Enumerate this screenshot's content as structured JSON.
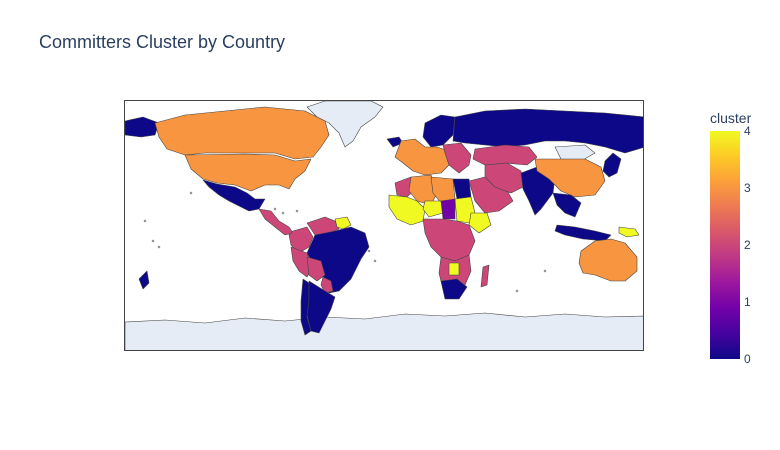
{
  "title": "Committers Cluster by Country",
  "colorbar": {
    "title": "cluster",
    "ticks": [
      "0",
      "1",
      "2",
      "3",
      "4"
    ],
    "range": [
      0,
      4
    ]
  },
  "colors": {
    "scale": [
      "#0d0887",
      "#46039f",
      "#7201a8",
      "#9c179e",
      "#bd3786",
      "#d8576b",
      "#ed7953",
      "#fb9f3a",
      "#fdca26",
      "#f0f921"
    ],
    "cluster_0": "#0d0887",
    "cluster_1": "#7201a8",
    "cluster_2": "#cc4778",
    "cluster_3": "#f89540",
    "cluster_4": "#f0f921",
    "no_data_land": "#e5ecf6",
    "border": "#444444",
    "ocean": "#ffffff"
  },
  "regions": [
    {
      "name": "Alaska/Siberia strip",
      "cluster": 0
    },
    {
      "name": "Canada",
      "cluster": 3
    },
    {
      "name": "United States",
      "cluster": 3
    },
    {
      "name": "Mexico",
      "cluster": 0
    },
    {
      "name": "Central America",
      "cluster": 2
    },
    {
      "name": "Colombia",
      "cluster": 2
    },
    {
      "name": "Venezuela",
      "cluster": 2
    },
    {
      "name": "Guyana",
      "cluster": 4
    },
    {
      "name": "Brazil",
      "cluster": 0
    },
    {
      "name": "Peru",
      "cluster": 2
    },
    {
      "name": "Bolivia",
      "cluster": 2
    },
    {
      "name": "Paraguay",
      "cluster": 2
    },
    {
      "name": "Chile",
      "cluster": 0
    },
    {
      "name": "Argentina",
      "cluster": 0
    },
    {
      "name": "Greenland",
      "cluster": null
    },
    {
      "name": "Iceland",
      "cluster": 0
    },
    {
      "name": "Western Europe",
      "cluster": 3
    },
    {
      "name": "Scandinavia",
      "cluster": 0
    },
    {
      "name": "Russia",
      "cluster": 0
    },
    {
      "name": "Eastern Europe",
      "cluster": 2
    },
    {
      "name": "Morocco",
      "cluster": 2
    },
    {
      "name": "Algeria",
      "cluster": 3
    },
    {
      "name": "Libya",
      "cluster": 3
    },
    {
      "name": "Egypt",
      "cluster": 0
    },
    {
      "name": "West Africa",
      "cluster": 4
    },
    {
      "name": "Niger",
      "cluster": 4
    },
    {
      "name": "Chad",
      "cluster": 1
    },
    {
      "name": "Sudan",
      "cluster": 4
    },
    {
      "name": "Ethiopia",
      "cluster": 4
    },
    {
      "name": "Central Africa",
      "cluster": 2
    },
    {
      "name": "Southern Africa",
      "cluster": 2
    },
    {
      "name": "Botswana",
      "cluster": 4
    },
    {
      "name": "South Africa",
      "cluster": 0
    },
    {
      "name": "Madagascar",
      "cluster": 2
    },
    {
      "name": "Arabian Peninsula",
      "cluster": 2
    },
    {
      "name": "Iran",
      "cluster": 2
    },
    {
      "name": "Central Asia",
      "cluster": 2
    },
    {
      "name": "Mongolia",
      "cluster": null
    },
    {
      "name": "China",
      "cluster": 3
    },
    {
      "name": "India",
      "cluster": 0
    },
    {
      "name": "Southeast Asia",
      "cluster": 0
    },
    {
      "name": "Japan/Korea",
      "cluster": 0
    },
    {
      "name": "Indonesia",
      "cluster": 0
    },
    {
      "name": "Papua New Guinea",
      "cluster": 4
    },
    {
      "name": "Australia",
      "cluster": 3
    },
    {
      "name": "New Zealand",
      "cluster": 0
    },
    {
      "name": "Antarctica",
      "cluster": null
    }
  ]
}
